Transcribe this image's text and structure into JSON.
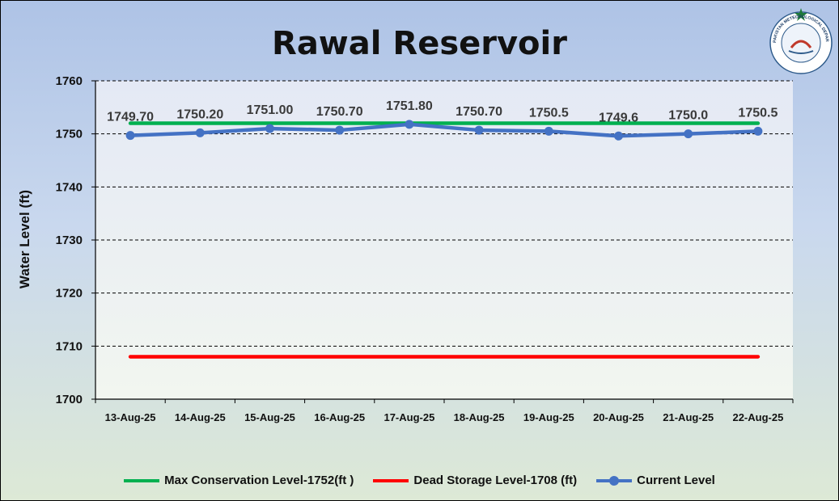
{
  "chart_data": {
    "type": "line",
    "title": "Rawal Reservoir",
    "ylabel": "Water Level (ft)",
    "xlabel": "",
    "ylim": [
      1700,
      1760
    ],
    "yticks": [
      "1700",
      "1710",
      "1720",
      "1730",
      "1740",
      "1750",
      "1760"
    ],
    "grid": "horizontal dashed",
    "legend_position": "bottom",
    "categories": [
      "13-Aug-25",
      "14-Aug-25",
      "15-Aug-25",
      "16-Aug-25",
      "17-Aug-25",
      "18-Aug-25",
      "19-Aug-25",
      "20-Aug-25",
      "21-Aug-25",
      "22-Aug-25"
    ],
    "series": [
      {
        "name": "Max Conservation Level-1752(ft )",
        "values": [
          1752,
          1752,
          1752,
          1752,
          1752,
          1752,
          1752,
          1752,
          1752,
          1752
        ],
        "color": "#00b050"
      },
      {
        "name": "Dead Storage Level-1708 (ft)",
        "values": [
          1708,
          1708,
          1708,
          1708,
          1708,
          1708,
          1708,
          1708,
          1708,
          1708
        ],
        "color": "#ff0000"
      },
      {
        "name": "Current Level",
        "values": [
          1749.7,
          1750.2,
          1751.0,
          1750.7,
          1751.8,
          1750.7,
          1750.5,
          1749.6,
          1750.0,
          1750.5
        ],
        "color": "#4472c4",
        "labels": [
          "1749.70",
          "1750.20",
          "1751.00",
          "1750.70",
          "1751.80",
          "1750.70",
          "1750.5",
          "1749.6",
          "1750.0",
          "1750.5"
        ]
      }
    ]
  },
  "logo": {
    "name": "pakistan-meteorological-department-logo",
    "text": "PAKISTAN METEOROLOGICAL DEPARTMENT"
  }
}
